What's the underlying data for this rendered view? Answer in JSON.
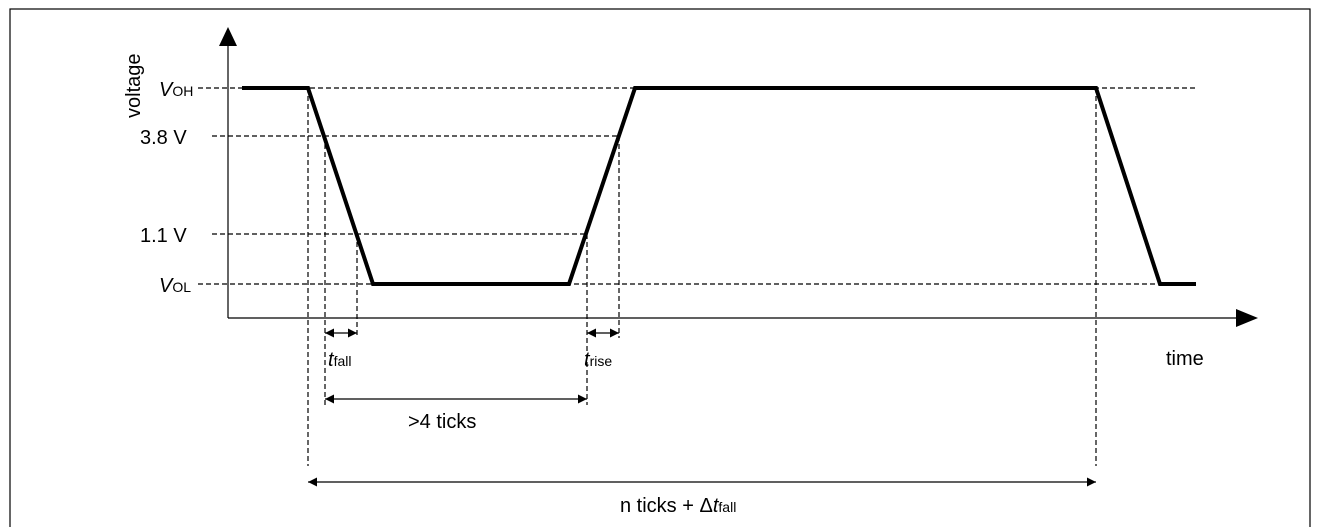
{
  "axes": {
    "y_label": "voltage",
    "x_label": "time"
  },
  "levels": {
    "voh": {
      "main": "V",
      "sub": "OH"
    },
    "v38": "3.8 V",
    "v11": "1.1 V",
    "vol": {
      "main": "V",
      "sub": "OL"
    }
  },
  "annotations": {
    "t_fall": {
      "main": "t",
      "sub": "fall"
    },
    "t_rise": {
      "main": "t",
      "sub": "rise"
    },
    "gt4": ">4 ticks",
    "period": {
      "prefix": "n ticks + Δ",
      "main": "t",
      "sub": "fall"
    }
  },
  "colors": {
    "stroke": "#000000",
    "background": "#ffffff"
  }
}
